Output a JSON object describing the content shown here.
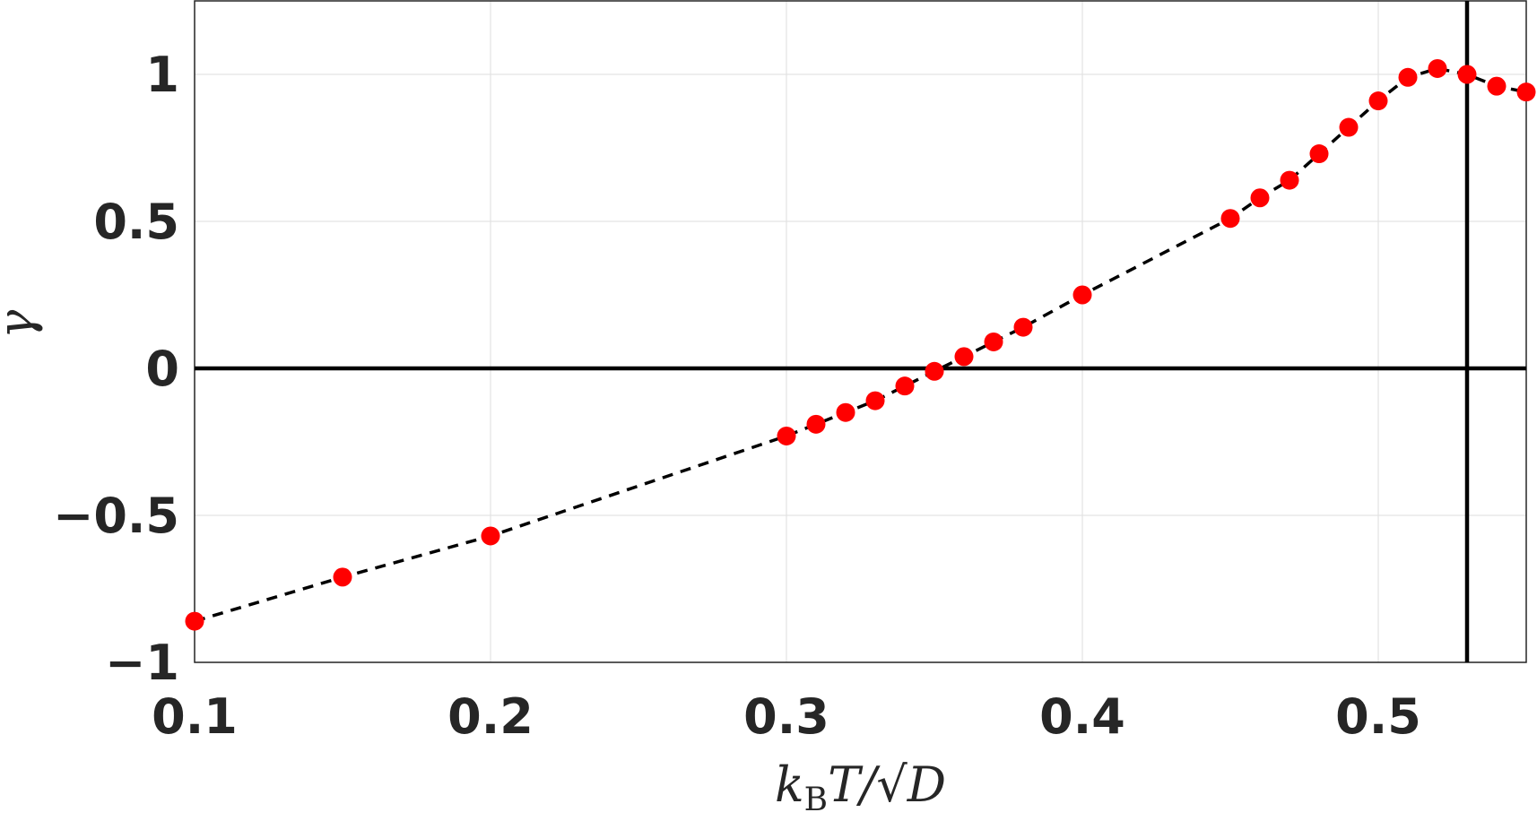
{
  "chart_data": {
    "type": "scatter",
    "xlabel": {
      "k": "k",
      "sub": "B",
      "rest": "T/√D"
    },
    "ylabel": "γ",
    "xlim": [
      0.1,
      0.55
    ],
    "ylim": [
      -1,
      1.25
    ],
    "xticks": [
      {
        "v": 0.1,
        "label": "0.1"
      },
      {
        "v": 0.2,
        "label": "0.2"
      },
      {
        "v": 0.3,
        "label": "0.3"
      },
      {
        "v": 0.4,
        "label": "0.4"
      },
      {
        "v": 0.5,
        "label": "0.5"
      }
    ],
    "yticks": [
      {
        "v": -1,
        "label": "−1"
      },
      {
        "v": -0.5,
        "label": "−0.5"
      },
      {
        "v": 0,
        "label": "0"
      },
      {
        "v": 0.5,
        "label": "0.5"
      },
      {
        "v": 1,
        "label": "1"
      }
    ],
    "grid": true,
    "reference_lines": {
      "horizontal_y": 0,
      "vertical_x": 0.53
    },
    "series": [
      {
        "marker": "circle",
        "color": "#ff0000",
        "fit_line": "dashed",
        "fit_color": "#000000",
        "x": [
          0.1,
          0.15,
          0.2,
          0.3,
          0.31,
          0.32,
          0.33,
          0.34,
          0.35,
          0.36,
          0.37,
          0.38,
          0.4,
          0.45,
          0.46,
          0.47,
          0.48,
          0.49,
          0.5,
          0.51,
          0.52,
          0.53,
          0.54,
          0.55
        ],
        "y": [
          -0.86,
          -0.71,
          -0.57,
          -0.23,
          -0.19,
          -0.15,
          -0.11,
          -0.06,
          -0.01,
          0.04,
          0.09,
          0.14,
          0.25,
          0.51,
          0.58,
          0.64,
          0.73,
          0.82,
          0.91,
          0.99,
          1.02,
          1.0,
          0.96,
          0.94
        ]
      }
    ]
  }
}
